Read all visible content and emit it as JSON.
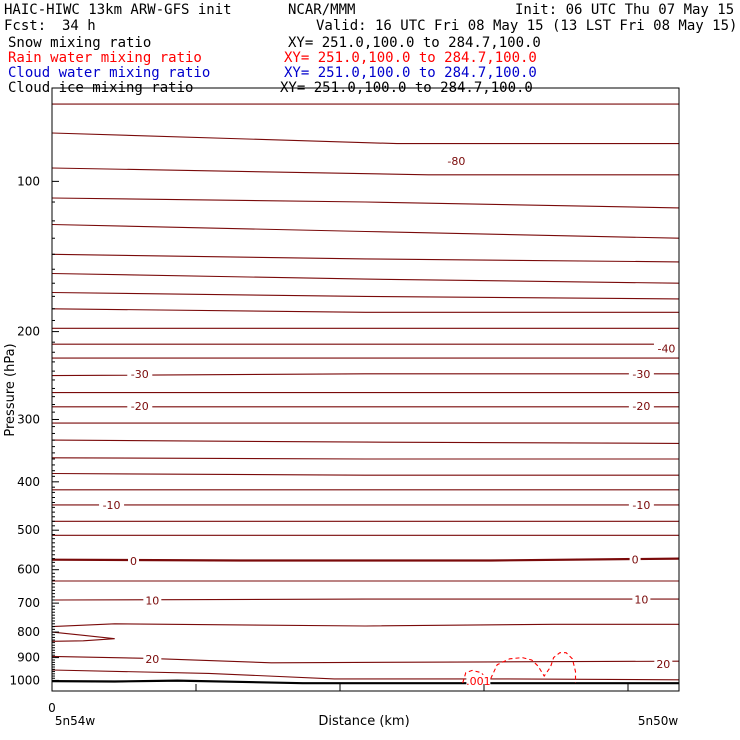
{
  "header": {
    "model": "HAIC-HIWC 13km ARW-GFS init",
    "org": "NCAR/MMM",
    "init": "Init: 06 UTC Thu 07 May 15",
    "fcst_label": "Fcst:",
    "fcst_value": "34 h",
    "valid": "Valid: 16 UTC Fri 08 May 15 (13 LST Fri 08 May 15)"
  },
  "legend": [
    {
      "name": "Snow mixing ratio",
      "xy": "XY= 251.0,100.0 to 284.7,100.0",
      "color": "#000000"
    },
    {
      "name": "Rain water mixing ratio",
      "xy": "XY= 251.0,100.0 to 284.7,100.0",
      "color": "#ff0000"
    },
    {
      "name": "Cloud water mixing ratio",
      "xy": "XY= 251.0,100.0 to 284.7,100.0",
      "color": "#0000cc"
    },
    {
      "name": "Cloud ice mixing ratio",
      "xy": "XY= 251.0,100.0 to 284.7,100.0",
      "color": "#000000"
    }
  ],
  "chart_data": {
    "type": "line",
    "xlabel": "Distance (km)",
    "ylabel": "Pressure (hPa)",
    "x_ticks": [
      "0"
    ],
    "x_end_labels": [
      "5n54w",
      "5n50w"
    ],
    "y_ticks": [
      100,
      200,
      300,
      400,
      500,
      600,
      700,
      800,
      900,
      1000
    ],
    "ylim": [
      1050,
      65
    ],
    "xlim": [
      0,
      100
    ],
    "isotherm_color": "#7a0a0a",
    "isotherms": [
      {
        "pts": [
          [
            0,
            70
          ],
          [
            50,
            70
          ],
          [
            100,
            70
          ]
        ]
      },
      {
        "pts": [
          [
            0,
            80
          ],
          [
            55,
            84
          ],
          [
            100,
            84
          ]
        ]
      },
      {
        "pts": [
          [
            0,
            94
          ],
          [
            60,
            97
          ],
          [
            66,
            97
          ],
          [
            100,
            97
          ]
        ]
      },
      {
        "pts": [
          [
            0,
            108
          ],
          [
            50,
            110
          ],
          [
            100,
            113
          ]
        ]
      },
      {
        "pts": [
          [
            0,
            122
          ],
          [
            50,
            126
          ],
          [
            100,
            130
          ]
        ]
      },
      {
        "pts": [
          [
            0,
            140
          ],
          [
            50,
            143
          ],
          [
            100,
            145
          ]
        ]
      },
      {
        "pts": [
          [
            0,
            153
          ],
          [
            50,
            157
          ],
          [
            100,
            160
          ]
        ]
      },
      {
        "pts": [
          [
            0,
            167
          ],
          [
            50,
            170
          ],
          [
            100,
            172
          ]
        ]
      },
      {
        "pts": [
          [
            0,
            180
          ],
          [
            50,
            183
          ],
          [
            100,
            183
          ]
        ]
      },
      {
        "pts": [
          [
            0,
            197
          ],
          [
            50,
            197
          ],
          [
            100,
            197
          ]
        ]
      },
      {
        "pts": [
          [
            0,
            212
          ],
          [
            50,
            212
          ],
          [
            100,
            212
          ]
        ]
      },
      {
        "pts": [
          [
            0,
            226
          ],
          [
            50,
            226
          ],
          [
            100,
            226
          ]
        ]
      },
      {
        "pts": [
          [
            0,
            245
          ],
          [
            50,
            243
          ],
          [
            100,
            243
          ]
        ]
      },
      {
        "pts": [
          [
            0,
            265
          ],
          [
            50,
            265
          ],
          [
            100,
            265
          ]
        ]
      },
      {
        "pts": [
          [
            0,
            283
          ],
          [
            50,
            283
          ],
          [
            100,
            283
          ]
        ]
      },
      {
        "pts": [
          [
            0,
            305
          ],
          [
            50,
            305
          ],
          [
            100,
            305
          ]
        ]
      },
      {
        "pts": [
          [
            0,
            330
          ],
          [
            50,
            333
          ],
          [
            100,
            335
          ]
        ]
      },
      {
        "pts": [
          [
            0,
            358
          ],
          [
            50,
            360
          ],
          [
            100,
            360
          ]
        ]
      },
      {
        "pts": [
          [
            0,
            385
          ],
          [
            50,
            388
          ],
          [
            100,
            388
          ]
        ]
      },
      {
        "pts": [
          [
            0,
            415
          ],
          [
            50,
            415
          ],
          [
            100,
            415
          ]
        ]
      },
      {
        "pts": [
          [
            0,
            445
          ],
          [
            50,
            445
          ],
          [
            100,
            445
          ]
        ]
      },
      {
        "pts": [
          [
            0,
            480
          ],
          [
            50,
            480
          ],
          [
            100,
            480
          ]
        ]
      },
      {
        "pts": [
          [
            0,
            512
          ],
          [
            50,
            512
          ],
          [
            100,
            512
          ]
        ]
      },
      {
        "pts": [
          [
            0,
            573
          ],
          [
            30,
            575
          ],
          [
            70,
            575
          ],
          [
            100,
            570
          ]
        ],
        "bold": true
      },
      {
        "pts": [
          [
            0,
            632
          ],
          [
            50,
            632
          ],
          [
            100,
            632
          ]
        ]
      },
      {
        "pts": [
          [
            0,
            690
          ],
          [
            50,
            687
          ],
          [
            100,
            687
          ]
        ]
      },
      {
        "pts": [
          [
            0,
            780
          ],
          [
            10,
            770
          ],
          [
            50,
            778
          ],
          [
            80,
            772
          ],
          [
            100,
            772
          ]
        ]
      },
      {
        "pts": [
          [
            0,
            800
          ],
          [
            5,
            812
          ],
          [
            10,
            825
          ],
          [
            5,
            833
          ],
          [
            0,
            835
          ]
        ]
      },
      {
        "pts": [
          [
            0,
            895
          ],
          [
            15,
            903
          ],
          [
            35,
            922
          ],
          [
            70,
            918
          ],
          [
            100,
            915
          ]
        ]
      },
      {
        "pts": [
          [
            0,
            953
          ],
          [
            25,
            968
          ],
          [
            45,
            993
          ],
          [
            70,
            993
          ],
          [
            100,
            997
          ]
        ]
      },
      {
        "pts": [
          [
            0,
            1003
          ],
          [
            10,
            1005
          ],
          [
            20,
            1001
          ],
          [
            40,
            1013
          ],
          [
            100,
            1013
          ]
        ],
        "bold": true
      }
    ],
    "isotherm_labels": [
      {
        "text": "-80",
        "x": 64.5,
        "p": 91
      },
      {
        "text": "-40",
        "x": 98,
        "p": 216
      },
      {
        "text": "-30",
        "x": 14,
        "p": 243
      },
      {
        "text": "-30",
        "x": 94,
        "p": 243
      },
      {
        "text": "-20",
        "x": 14,
        "p": 282
      },
      {
        "text": "-20",
        "x": 94,
        "p": 282
      },
      {
        "text": "-10",
        "x": 9.5,
        "p": 445
      },
      {
        "text": "-10",
        "x": 94,
        "p": 445
      },
      {
        "text": "0",
        "x": 13,
        "p": 576
      },
      {
        "text": "0",
        "x": 93,
        "p": 572
      },
      {
        "text": "10",
        "x": 16,
        "p": 691
      },
      {
        "text": "10",
        "x": 94,
        "p": 689
      },
      {
        "text": "20",
        "x": 16,
        "p": 906
      },
      {
        "text": "20",
        "x": 97.5,
        "p": 927
      }
    ],
    "rain_contour": {
      "level": ".001",
      "color": "#ff0000",
      "pts": [
        [
          65.5,
          1012
        ],
        [
          66,
          965
        ],
        [
          67,
          955
        ],
        [
          68.5,
          965
        ],
        [
          69.5,
          1005
        ],
        [
          70,
          990
        ],
        [
          71,
          930
        ],
        [
          73,
          905
        ],
        [
          75,
          900
        ],
        [
          76.5,
          910
        ],
        [
          77.5,
          935
        ],
        [
          78.5,
          980
        ],
        [
          79.5,
          940
        ],
        [
          80,
          900
        ],
        [
          81,
          880
        ],
        [
          82,
          880
        ],
        [
          83,
          905
        ],
        [
          83.5,
          960
        ],
        [
          83.5,
          1012
        ]
      ],
      "label_x": 68,
      "label_p": 1002
    }
  }
}
